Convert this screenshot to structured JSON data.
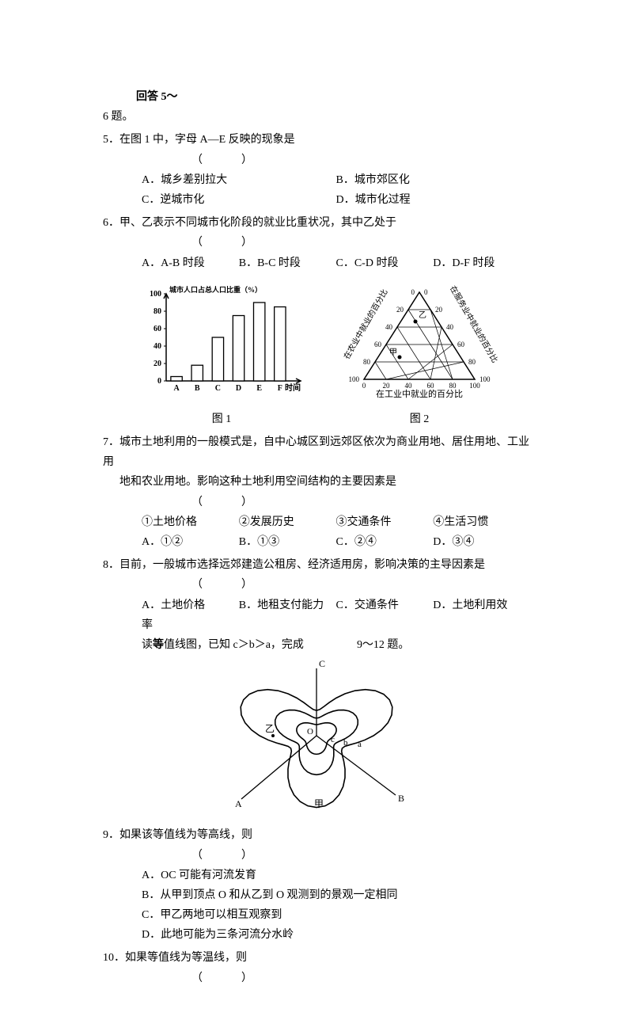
{
  "intro": {
    "line1": "回答 5～",
    "line2": "6 题。"
  },
  "q5": {
    "stem": "5．在图 1 中，字母 A—E 反映的现象是",
    "optA": "A．城乡差别拉大",
    "optB": "B．城市郊区化",
    "optC": "C．逆城市化",
    "optD": "D．城市化过程"
  },
  "q6": {
    "stem": "6．甲、乙表示不同城市化阶段的就业比重状况，其中乙处于",
    "optA": "A．A-B 时段",
    "optB": "B．B-C 时段",
    "optC": "C．C-D 时段",
    "optD": "D．D-F 时段"
  },
  "fig1": {
    "caption": "图 1",
    "ylabel": "城市人口占总人口比重（%）",
    "xlabel": "时间",
    "categories": [
      "A",
      "B",
      "C",
      "D",
      "E",
      "F"
    ],
    "values": [
      5,
      18,
      50,
      75,
      90,
      85
    ],
    "yticks": [
      0,
      20,
      40,
      60,
      80,
      100
    ],
    "bar_fill": "#ffffff",
    "stroke": "#000000",
    "font_size": 10
  },
  "fig2": {
    "caption": "图 2",
    "bottom_label": "在工业中就业的百分比",
    "left_label": "在农业中就业的百分比",
    "right_label": "在服务业中就业的百分比",
    "ticks": [
      "0",
      "20",
      "40",
      "60",
      "80",
      "100"
    ],
    "point_jia": "甲",
    "point_yi": "乙",
    "stroke": "#000000",
    "font_size": 9
  },
  "q7": {
    "stem1": "7．城市土地利用的一般模式是，自中心城区到远郊区依次为商业用地、居住用地、工业用",
    "stem2": "地和农业用地。影响这种土地利用空间结构的主要因素是",
    "n1": "①土地价格",
    "n2": "②发展历史",
    "n3": "③交通条件",
    "n4": "④生活习惯",
    "optA": "A．①②",
    "optB": "B．①③",
    "optC": "C．②④",
    "optD": "D．③④"
  },
  "q8": {
    "stem": "8．目前，一般城市选择远郊建造公租房、经济适用房，影响决策的主导因素是",
    "optA": "A．土地价格",
    "optB": "B．地租支付能力",
    "optC": "C．交通条件",
    "optD": "D．土地利用效",
    "optD2": "率"
  },
  "contour_intro": {
    "part1": "读",
    "bold": "等",
    "part2": "值线图，已知 c＞b＞a，完成",
    "part3": "9～12 题。"
  },
  "contour": {
    "labels": {
      "A": "A",
      "B": "B",
      "C": "C",
      "O": "O",
      "a": "a",
      "b": "b",
      "c": "c",
      "jia": "甲",
      "yi": "乙"
    },
    "stroke": "#000000"
  },
  "q9": {
    "stem": "9．如果该等值线为等高线，则",
    "optA": "A．OC 可能有河流发育",
    "optB": "B．从甲到顶点 O 和从乙到 O 观测到的景观一定相同",
    "optC": "C．甲乙两地可以相互观察到",
    "optD": "D．此地可能为三条河流分水岭"
  },
  "q10": {
    "stem": "10．如果等值线为等温线，则"
  },
  "blank": "（　　）"
}
